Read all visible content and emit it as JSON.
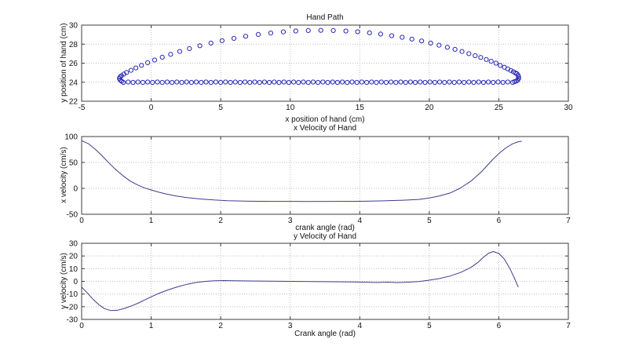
{
  "figure": {
    "background": "#ffffff",
    "marker_color": "#2727b5",
    "line_color": "#3c3c8c",
    "grid_color": "#bdbdbd",
    "axis_color": "#3c3c3c",
    "text_color": "#111111"
  },
  "chart_data": [
    {
      "type": "scatter",
      "title": "Hand Path",
      "xlabel": "x position of hand (cm)",
      "ylabel": "y position of hand (cm)",
      "xlim": [
        -5,
        30
      ],
      "ylim": [
        22,
        30
      ],
      "xticks": [
        -5,
        0,
        5,
        10,
        15,
        20,
        25,
        30
      ],
      "yticks": [
        22,
        24,
        26,
        28,
        30
      ],
      "grid": true,
      "marker": "o",
      "points": [
        [
          -2.12,
          24.1
        ],
        [
          -2.22,
          24.22
        ],
        [
          -2.28,
          24.38
        ],
        [
          -2.24,
          24.55
        ],
        [
          -2.13,
          24.7
        ],
        [
          -1.97,
          24.85
        ],
        [
          -1.77,
          25.02
        ],
        [
          -1.45,
          25.25
        ],
        [
          -1.1,
          25.5
        ],
        [
          -0.7,
          25.77
        ],
        [
          -0.25,
          26.05
        ],
        [
          0.25,
          26.33
        ],
        [
          0.8,
          26.63
        ],
        [
          1.4,
          26.93
        ],
        [
          2.05,
          27.23
        ],
        [
          2.75,
          27.53
        ],
        [
          3.5,
          27.83
        ],
        [
          4.3,
          28.11
        ],
        [
          5.1,
          28.37
        ],
        [
          5.95,
          28.61
        ],
        [
          6.8,
          28.83
        ],
        [
          7.7,
          29.02
        ],
        [
          8.6,
          29.17
        ],
        [
          9.5,
          29.29
        ],
        [
          10.4,
          29.38
        ],
        [
          11.3,
          29.43
        ],
        [
          12.2,
          29.45
        ],
        [
          13.1,
          29.43
        ],
        [
          14.0,
          29.38
        ],
        [
          14.85,
          29.3
        ],
        [
          15.7,
          29.19
        ],
        [
          16.5,
          29.06
        ],
        [
          17.3,
          28.89
        ],
        [
          18.05,
          28.72
        ],
        [
          18.75,
          28.53
        ],
        [
          19.45,
          28.33
        ],
        [
          20.1,
          28.11
        ],
        [
          20.7,
          27.89
        ],
        [
          21.3,
          27.67
        ],
        [
          21.85,
          27.45
        ],
        [
          22.35,
          27.23
        ],
        [
          22.85,
          27.0
        ],
        [
          23.3,
          26.79
        ],
        [
          23.7,
          26.6
        ],
        [
          24.1,
          26.39
        ],
        [
          24.45,
          26.2
        ],
        [
          24.8,
          26.0
        ],
        [
          25.1,
          25.77
        ],
        [
          25.4,
          25.57
        ],
        [
          25.65,
          25.4
        ],
        [
          25.87,
          25.23
        ],
        [
          26.05,
          25.09
        ],
        [
          26.2,
          24.97
        ],
        [
          26.3,
          24.89
        ],
        [
          26.38,
          24.72
        ],
        [
          26.42,
          24.55
        ],
        [
          26.42,
          24.38
        ],
        [
          26.36,
          24.22
        ],
        [
          26.26,
          24.12
        ],
        [
          26.14,
          24.06
        ],
        [
          26.0,
          23.98
        ],
        [
          25.65,
          24.02
        ],
        [
          25.3,
          23.98
        ],
        [
          24.95,
          24.02
        ],
        [
          24.6,
          23.98
        ],
        [
          24.25,
          24.02
        ],
        [
          23.9,
          23.98
        ],
        [
          23.55,
          24.02
        ],
        [
          23.2,
          23.98
        ],
        [
          22.85,
          24.02
        ],
        [
          22.5,
          23.98
        ],
        [
          22.15,
          24.02
        ],
        [
          21.8,
          23.98
        ],
        [
          21.45,
          24.02
        ],
        [
          21.1,
          23.98
        ],
        [
          20.75,
          24.02
        ],
        [
          20.4,
          23.98
        ],
        [
          20.05,
          24.02
        ],
        [
          19.7,
          23.98
        ],
        [
          19.35,
          24.02
        ],
        [
          19.0,
          23.98
        ],
        [
          18.65,
          24.02
        ],
        [
          18.3,
          23.98
        ],
        [
          17.95,
          24.02
        ],
        [
          17.6,
          23.98
        ],
        [
          17.25,
          24.02
        ],
        [
          16.9,
          23.98
        ],
        [
          16.55,
          24.02
        ],
        [
          16.2,
          23.98
        ],
        [
          15.85,
          24.02
        ],
        [
          15.5,
          23.98
        ],
        [
          15.15,
          24.02
        ],
        [
          14.8,
          23.98
        ],
        [
          14.45,
          24.02
        ],
        [
          14.1,
          23.98
        ],
        [
          13.75,
          24.02
        ],
        [
          13.4,
          23.98
        ],
        [
          13.05,
          24.02
        ],
        [
          12.7,
          23.98
        ],
        [
          12.35,
          24.02
        ],
        [
          12.0,
          23.98
        ],
        [
          11.65,
          24.02
        ],
        [
          11.3,
          23.98
        ],
        [
          10.95,
          24.02
        ],
        [
          10.6,
          23.98
        ],
        [
          10.25,
          24.02
        ],
        [
          9.9,
          23.98
        ],
        [
          9.55,
          24.02
        ],
        [
          9.2,
          23.98
        ],
        [
          8.85,
          24.02
        ],
        [
          8.5,
          23.98
        ],
        [
          8.15,
          24.02
        ],
        [
          7.8,
          23.98
        ],
        [
          7.45,
          24.02
        ],
        [
          7.1,
          23.98
        ],
        [
          6.75,
          24.02
        ],
        [
          6.4,
          23.98
        ],
        [
          6.05,
          24.02
        ],
        [
          5.7,
          23.98
        ],
        [
          5.35,
          24.02
        ],
        [
          5.0,
          23.98
        ],
        [
          4.65,
          24.02
        ],
        [
          4.3,
          23.98
        ],
        [
          3.95,
          24.02
        ],
        [
          3.6,
          23.98
        ],
        [
          3.25,
          24.02
        ],
        [
          2.9,
          23.98
        ],
        [
          2.55,
          24.02
        ],
        [
          2.2,
          23.98
        ],
        [
          1.85,
          24.02
        ],
        [
          1.5,
          23.98
        ],
        [
          1.15,
          24.02
        ],
        [
          0.8,
          23.98
        ],
        [
          0.45,
          24.02
        ],
        [
          0.1,
          23.98
        ],
        [
          -0.25,
          24.02
        ],
        [
          -0.6,
          23.98
        ],
        [
          -0.95,
          24.02
        ],
        [
          -1.3,
          23.98
        ],
        [
          -1.65,
          24.02
        ],
        [
          -2.0,
          23.98
        ]
      ]
    },
    {
      "type": "line",
      "title": "x Velocity of Hand",
      "xlabel": "crank angle (rad)",
      "ylabel": "x velocity (cm/s)",
      "xlim": [
        0,
        7
      ],
      "ylim": [
        -50,
        100
      ],
      "xticks": [
        0,
        1,
        2,
        3,
        4,
        5,
        6,
        7
      ],
      "yticks": [
        -50,
        0,
        50,
        100
      ],
      "grid": true,
      "points": [
        [
          0,
          92
        ],
        [
          0.1,
          86
        ],
        [
          0.2,
          75
        ],
        [
          0.3,
          62
        ],
        [
          0.4,
          48
        ],
        [
          0.5,
          35
        ],
        [
          0.6,
          24
        ],
        [
          0.7,
          14
        ],
        [
          0.8,
          7
        ],
        [
          0.9,
          1
        ],
        [
          1.0,
          -3
        ],
        [
          1.1,
          -7
        ],
        [
          1.2,
          -10.5
        ],
        [
          1.35,
          -14.5
        ],
        [
          1.5,
          -17.5
        ],
        [
          1.7,
          -20.5
        ],
        [
          1.9,
          -22.5
        ],
        [
          2.1,
          -23.8
        ],
        [
          2.4,
          -24.8
        ],
        [
          2.8,
          -25.2
        ],
        [
          3.2,
          -25.3
        ],
        [
          3.6,
          -25.2
        ],
        [
          4.0,
          -25
        ],
        [
          4.3,
          -24.3
        ],
        [
          4.6,
          -23
        ],
        [
          4.85,
          -21.3
        ],
        [
          5.0,
          -18.5
        ],
        [
          5.15,
          -14.5
        ],
        [
          5.3,
          -9
        ],
        [
          5.44,
          0
        ],
        [
          5.6,
          14
        ],
        [
          5.75,
          32
        ],
        [
          5.9,
          54
        ],
        [
          6.0,
          67
        ],
        [
          6.1,
          78
        ],
        [
          6.2,
          86
        ],
        [
          6.28,
          90
        ],
        [
          6.33,
          91
        ]
      ]
    },
    {
      "type": "line",
      "title": "y Velocity of Hand",
      "xlabel": "Crank angle (rad)",
      "ylabel": "y velocity (cm/s)",
      "xlim": [
        0,
        7
      ],
      "ylim": [
        -30,
        30
      ],
      "xticks": [
        0,
        1,
        2,
        3,
        4,
        5,
        6,
        7
      ],
      "yticks": [
        -30,
        -20,
        -10,
        0,
        10,
        20,
        30
      ],
      "grid": true,
      "points": [
        [
          0,
          -4.5
        ],
        [
          0.08,
          -9
        ],
        [
          0.16,
          -14
        ],
        [
          0.25,
          -18.5
        ],
        [
          0.33,
          -21.5
        ],
        [
          0.42,
          -23
        ],
        [
          0.52,
          -22.7
        ],
        [
          0.62,
          -21.3
        ],
        [
          0.72,
          -19.3
        ],
        [
          0.82,
          -17
        ],
        [
          0.92,
          -14.3
        ],
        [
          1.02,
          -11.7
        ],
        [
          1.12,
          -9.3
        ],
        [
          1.22,
          -7.2
        ],
        [
          1.32,
          -5.3
        ],
        [
          1.42,
          -3.7
        ],
        [
          1.52,
          -2.3
        ],
        [
          1.62,
          -1.2
        ],
        [
          1.72,
          -0.4
        ],
        [
          1.82,
          0.2
        ],
        [
          1.92,
          0.5
        ],
        [
          2.05,
          0.6
        ],
        [
          2.2,
          0.5
        ],
        [
          2.4,
          0.3
        ],
        [
          2.7,
          0.1
        ],
        [
          3.0,
          0
        ],
        [
          3.3,
          -0.1
        ],
        [
          3.6,
          -0.3
        ],
        [
          3.9,
          -0.5
        ],
        [
          4.1,
          -0.7
        ],
        [
          4.25,
          -0.9
        ],
        [
          4.4,
          -0.6
        ],
        [
          4.55,
          -1.0
        ],
        [
          4.7,
          -0.6
        ],
        [
          4.85,
          -0.1
        ],
        [
          5.0,
          0.9
        ],
        [
          5.15,
          2.2
        ],
        [
          5.3,
          4.2
        ],
        [
          5.45,
          7
        ],
        [
          5.6,
          11
        ],
        [
          5.7,
          15
        ],
        [
          5.78,
          19
        ],
        [
          5.85,
          22
        ],
        [
          5.92,
          23.5
        ],
        [
          6.0,
          22
        ],
        [
          6.08,
          17.5
        ],
        [
          6.16,
          10
        ],
        [
          6.22,
          3
        ],
        [
          6.28,
          -4.5
        ]
      ]
    }
  ]
}
